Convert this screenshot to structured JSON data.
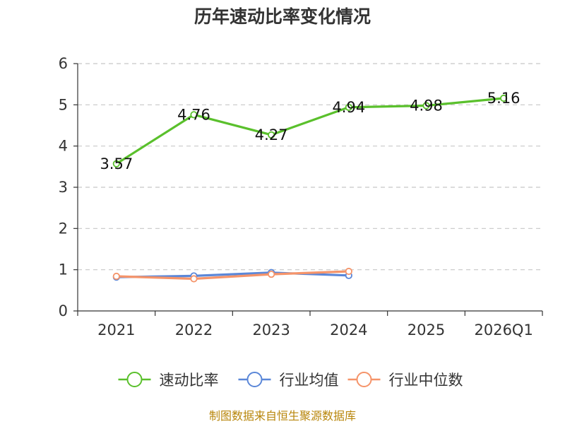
{
  "chart_data": {
    "type": "line",
    "title": "历年速动比率变化情况",
    "categories": [
      "2021",
      "2022",
      "2023",
      "2024",
      "2025",
      "2026Q1"
    ],
    "ylim": [
      0,
      6
    ],
    "yticks": [
      0,
      1,
      2,
      3,
      4,
      5,
      6
    ],
    "grid": true,
    "legend_position": "bottom",
    "series": [
      {
        "name": "速动比率",
        "color": "#5ac02c",
        "values": [
          3.57,
          4.76,
          4.27,
          4.94,
          4.98,
          5.16
        ],
        "labels": true
      },
      {
        "name": "行业均值",
        "color": "#5b87d8",
        "values": [
          0.82,
          0.85,
          0.93,
          0.86,
          null,
          null
        ],
        "labels": false
      },
      {
        "name": "行业中位数",
        "color": "#f5946a",
        "values": [
          0.84,
          0.78,
          0.89,
          0.96,
          null,
          null
        ],
        "labels": false
      }
    ],
    "source": "制图数据来自恒生聚源数据库"
  }
}
